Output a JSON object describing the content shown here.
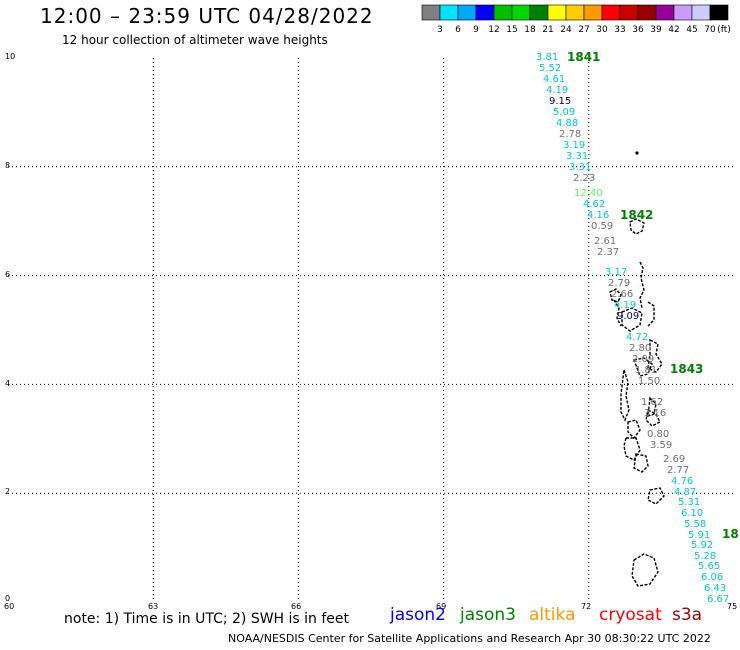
{
  "header": {
    "title": "12:00 – 23:59 UTC 04/28/2022",
    "subtitle": "12 hour collection of altimeter wave heights"
  },
  "legend": {
    "ticks": [
      "3",
      "6",
      "9",
      "12",
      "15",
      "18",
      "21",
      "24",
      "27",
      "30",
      "33",
      "36",
      "39",
      "42",
      "45",
      "70",
      "(ft)"
    ],
    "colors": [
      "#808080",
      "#00e5ff",
      "#00a8ff",
      "#0000ff",
      "#00c000",
      "#00d800",
      "#008000",
      "#ffff00",
      "#ffcc00",
      "#ff9900",
      "#ff0000",
      "#cc0000",
      "#990000",
      "#990099",
      "#cc99ff",
      "#ccccff",
      "#000000"
    ]
  },
  "axes": {
    "x_ticks": [
      "60",
      "63",
      "66",
      "69",
      "72",
      "75"
    ],
    "y_ticks": [
      "10",
      "8",
      "6",
      "4",
      "2",
      "0"
    ],
    "grid": "dotted"
  },
  "passes": [
    {
      "label": "1841",
      "color": "#008000"
    },
    {
      "label": "1842",
      "color": "#008000"
    },
    {
      "label": "1843",
      "color": "#008000"
    },
    {
      "label": "18",
      "color": "#008000"
    }
  ],
  "wave_heights": [
    {
      "v": "3.81",
      "c": "#00c8e0"
    },
    {
      "v": "5.52",
      "c": "#00c8e0"
    },
    {
      "v": "4.61",
      "c": "#00c8e0"
    },
    {
      "v": "4.19",
      "c": "#00c8e0"
    },
    {
      "v": "9.15",
      "c": "#000080"
    },
    {
      "v": "5.09",
      "c": "#00c8e0"
    },
    {
      "v": "4.88",
      "c": "#00c8e0"
    },
    {
      "v": "2.78",
      "c": "#707070"
    },
    {
      "v": "3.19",
      "c": "#00c8e0"
    },
    {
      "v": "3.31",
      "c": "#00c8e0"
    },
    {
      "v": "3.31",
      "c": "#00c8e0"
    },
    {
      "v": "2.23",
      "c": "#707070"
    },
    {
      "v": "12.40",
      "c": "#66ee66"
    },
    {
      "v": "4.62",
      "c": "#00c8e0"
    },
    {
      "v": "4.16",
      "c": "#00c8e0"
    },
    {
      "v": "0.59",
      "c": "#707070"
    },
    {
      "v": "2.61",
      "c": "#707070"
    },
    {
      "v": "2.37",
      "c": "#707070"
    },
    {
      "v": "3.17",
      "c": "#00c8e0"
    },
    {
      "v": "2.79",
      "c": "#707070"
    },
    {
      "v": "2.66",
      "c": "#707070"
    },
    {
      "v": "4.19",
      "c": "#00c8e0"
    },
    {
      "v": "9.09",
      "c": "#000080"
    },
    {
      "v": "4.72",
      "c": "#00c8e0"
    },
    {
      "v": "2.80",
      "c": "#707070"
    },
    {
      "v": "2.09",
      "c": "#707070"
    },
    {
      "v": "1.81",
      "c": "#707070"
    },
    {
      "v": "1.50",
      "c": "#707070"
    },
    {
      "v": "1.62",
      "c": "#707070"
    },
    {
      "v": "3.16",
      "c": "#707070"
    },
    {
      "v": "0.80",
      "c": "#707070"
    },
    {
      "v": "3.59",
      "c": "#707070"
    },
    {
      "v": "2.69",
      "c": "#707070"
    },
    {
      "v": "2.77",
      "c": "#707070"
    },
    {
      "v": "4.76",
      "c": "#00c8e0"
    },
    {
      "v": "4.87",
      "c": "#00c8e0"
    },
    {
      "v": "5.31",
      "c": "#00c8e0"
    },
    {
      "v": "6.10",
      "c": "#00c8e0"
    },
    {
      "v": "5.58",
      "c": "#00c8e0"
    },
    {
      "v": "5.91",
      "c": "#00c8e0"
    },
    {
      "v": "5.92",
      "c": "#00c8e0"
    },
    {
      "v": "5.28",
      "c": "#00c8e0"
    },
    {
      "v": "5.65",
      "c": "#00c8e0"
    },
    {
      "v": "6.06",
      "c": "#00c8e0"
    },
    {
      "v": "6.43",
      "c": "#00c8e0"
    },
    {
      "v": "6.67",
      "c": "#00c8e0"
    }
  ],
  "footer": {
    "note": "note:  1) Time is in UTC; 2) SWH is in feet",
    "satellites": [
      {
        "name": "jason2",
        "color": "#0000ff"
      },
      {
        "name": "jason3",
        "color": "#008000"
      },
      {
        "name": "altika",
        "color": "#ff9900"
      },
      {
        "name": "cryosat",
        "color": "#ff0000"
      },
      {
        "name": "s3a",
        "color": "#990000"
      }
    ],
    "credit": "NOAA/NESDIS Center for Satellite Applications and Research    Apr 30 08:30:22 UTC 2022"
  }
}
